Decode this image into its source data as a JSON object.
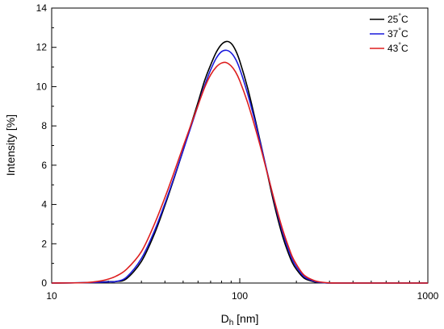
{
  "chart_data": {
    "type": "line",
    "xlabel": "D",
    "xlabel_sub": "h",
    "xlabel_unit": " [nm]",
    "ylabel": "Intensity [%]",
    "xscale": "log",
    "xlim": [
      10,
      1000
    ],
    "ylim": [
      0,
      14
    ],
    "xticks": [
      10,
      100,
      1000
    ],
    "xtick_labels": [
      "10",
      "100",
      "1000"
    ],
    "yticks": [
      0,
      2,
      4,
      6,
      8,
      10,
      12,
      14
    ],
    "ytick_labels": [
      "0",
      "2",
      "4",
      "6",
      "8",
      "10",
      "12",
      "14"
    ],
    "grid": false,
    "legend": "top-right",
    "series": [
      {
        "name": "25",
        "unit": "°C",
        "color": "#000000",
        "x": [
          10,
          15,
          20,
          22,
          25,
          30,
          35,
          40,
          45,
          50,
          55,
          60,
          65,
          70,
          75,
          80,
          85,
          90,
          95,
          100,
          110,
          120,
          130,
          140,
          150,
          160,
          170,
          180,
          190,
          200,
          220,
          250,
          280,
          300,
          350,
          1000
        ],
        "y": [
          0,
          0.02,
          0.07,
          0.08,
          0.22,
          1.1,
          2.45,
          3.95,
          5.4,
          6.75,
          8.05,
          9.2,
          10.3,
          11.1,
          11.75,
          12.15,
          12.3,
          12.2,
          11.85,
          11.3,
          9.95,
          8.45,
          7.0,
          5.6,
          4.3,
          3.2,
          2.3,
          1.6,
          1.05,
          0.7,
          0.25,
          0.06,
          0.01,
          0,
          0,
          0
        ]
      },
      {
        "name": "37",
        "unit": "°C",
        "color": "#1a1adb",
        "x": [
          10,
          15,
          20,
          22,
          25,
          30,
          35,
          40,
          45,
          50,
          55,
          60,
          65,
          70,
          75,
          80,
          85,
          90,
          95,
          100,
          110,
          120,
          130,
          140,
          150,
          160,
          170,
          180,
          190,
          200,
          220,
          250,
          280,
          300,
          350,
          1000
        ],
        "y": [
          0,
          0.02,
          0.06,
          0.08,
          0.3,
          1.25,
          2.6,
          4.05,
          5.45,
          6.75,
          7.95,
          9.05,
          10.05,
          10.85,
          11.45,
          11.78,
          11.85,
          11.72,
          11.4,
          10.9,
          9.65,
          8.3,
          6.95,
          5.65,
          4.45,
          3.4,
          2.5,
          1.78,
          1.2,
          0.82,
          0.32,
          0.08,
          0.02,
          0,
          0,
          0
        ]
      },
      {
        "name": "43",
        "unit": "°C",
        "color": "#dd1f1f",
        "x": [
          10,
          15,
          18,
          20,
          22,
          25,
          30,
          35,
          40,
          45,
          50,
          55,
          60,
          65,
          70,
          75,
          80,
          85,
          90,
          95,
          100,
          110,
          120,
          130,
          140,
          150,
          160,
          170,
          180,
          190,
          200,
          220,
          250,
          280,
          300,
          350,
          1000
        ],
        "y": [
          0,
          0.02,
          0.1,
          0.2,
          0.35,
          0.7,
          1.6,
          2.95,
          4.35,
          5.7,
          6.95,
          8.05,
          9.05,
          9.95,
          10.6,
          11.0,
          11.2,
          11.22,
          11.05,
          10.75,
          10.3,
          9.2,
          8.0,
          6.8,
          5.6,
          4.5,
          3.5,
          2.65,
          1.95,
          1.35,
          0.95,
          0.4,
          0.12,
          0.03,
          0.01,
          0,
          0
        ]
      }
    ]
  }
}
